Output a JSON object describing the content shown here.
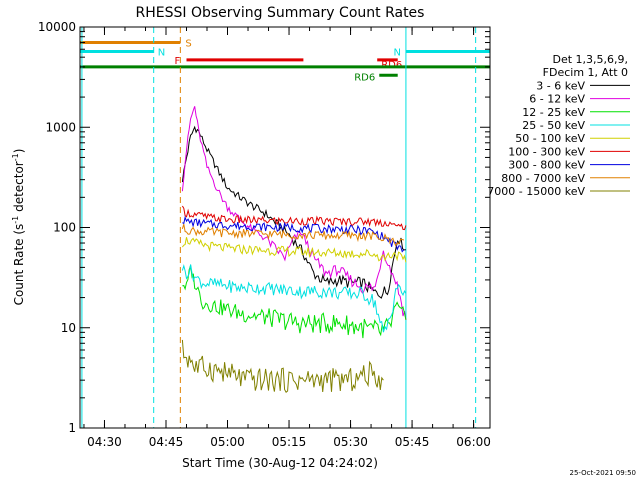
{
  "chart_data": {
    "type": "line",
    "title": "RHESSI Observing Summary Count Rates",
    "xlabel": "Start Time (30-Aug-12 04:24:02)",
    "ylabel": "Count Rate (s⁻¹ detector⁻¹)",
    "ylabel_main": "Count Rate (s",
    "ylabel_sup1": "-1",
    "ylabel_mid": " detector",
    "ylabel_sup2": "-1",
    "ylabel_end": ")",
    "y_scale": "log",
    "xlim": [
      "04:24:02",
      "06:04:00"
    ],
    "ylim": [
      1,
      10000
    ],
    "x_ticks": [
      "04:30",
      "04:45",
      "05:00",
      "05:15",
      "05:30",
      "05:45",
      "06:00"
    ],
    "y_ticks": [
      "1",
      "10",
      "100",
      "1000",
      "10000"
    ],
    "legend_title": [
      "Det 1,3,5,6,9,",
      "FDecim 1, Att 0"
    ],
    "legend_position": "right",
    "timestamp": "25-Oct-2021 09:50",
    "grid": false,
    "series": [
      {
        "name": "3 - 6 keV",
        "color": "#000000",
        "x": [
          "04:49:00",
          "04:50:00",
          "04:51:00",
          "04:52:00",
          "04:53:00",
          "04:55:00",
          "04:58:00",
          "05:00:00",
          "05:03:00",
          "05:06:00",
          "05:09:00",
          "05:12:00",
          "05:15:00",
          "05:18:00",
          "05:21:00",
          "05:24:00",
          "05:27:00",
          "05:30:00",
          "05:33:00",
          "05:36:00",
          "05:39:00",
          "05:41:30",
          "05:43:30"
        ],
        "y": [
          300,
          500,
          800,
          1000,
          900,
          600,
          350,
          250,
          200,
          165,
          140,
          110,
          85,
          60,
          35,
          28,
          30,
          28,
          28,
          22,
          23,
          80,
          60
        ]
      },
      {
        "name": "6 - 12 keV",
        "color": "#e000e0",
        "x": [
          "04:49:00",
          "04:50:00",
          "04:51:00",
          "04:52:00",
          "04:53:00",
          "04:55:00",
          "04:58:00",
          "05:00:00",
          "05:03:00",
          "05:06:00",
          "05:09:00",
          "05:12:00",
          "05:14:00",
          "05:16:00",
          "05:18:00",
          "05:21:00",
          "05:24:00",
          "05:27:00",
          "05:30:00",
          "05:33:00",
          "05:36:00",
          "05:38:00",
          "05:39:30",
          "05:41:00",
          "05:43:30"
        ],
        "y": [
          250,
          600,
          1200,
          1600,
          900,
          400,
          220,
          160,
          120,
          95,
          80,
          60,
          50,
          75,
          90,
          50,
          35,
          38,
          30,
          25,
          25,
          60,
          40,
          30,
          12
        ]
      },
      {
        "name": "12 - 25 keV",
        "color": "#00e000",
        "x": [
          "04:49:00",
          "04:50:00",
          "04:51:00",
          "04:52:00",
          "04:54:00",
          "04:58:00",
          "05:03:00",
          "05:08:00",
          "05:13:00",
          "05:18:00",
          "05:23:00",
          "05:28:00",
          "05:33:00",
          "05:37:00",
          "05:39:30",
          "05:41:00",
          "05:43:30"
        ],
        "y": [
          28,
          25,
          40,
          28,
          18,
          16,
          14,
          13,
          12,
          11,
          11,
          11,
          10,
          9,
          10,
          16,
          12
        ]
      },
      {
        "name": "25 - 50 keV",
        "color": "#00e0e0",
        "x": [
          "04:49:00",
          "04:50:00",
          "04:51:00",
          "04:52:00",
          "04:54:00",
          "04:58:00",
          "05:03:00",
          "05:08:00",
          "05:13:00",
          "05:18:00",
          "05:23:00",
          "05:28:00",
          "05:33:00",
          "05:36:00",
          "05:38:00",
          "05:40:00",
          "05:41:00",
          "05:43:30"
        ],
        "y": [
          40,
          35,
          38,
          32,
          28,
          27,
          25,
          25,
          24,
          23,
          23,
          22,
          22,
          18,
          8,
          14,
          25,
          22
        ]
      },
      {
        "name": "50 - 100 keV",
        "color": "#d0d000",
        "x": [
          "04:49:00",
          "04:50:00",
          "04:52:00",
          "04:56:00",
          "05:00:00",
          "05:05:00",
          "05:10:00",
          "05:15:00",
          "05:20:00",
          "05:25:00",
          "05:30:00",
          "05:35:00",
          "05:38:00",
          "05:40:00",
          "05:41:00",
          "05:43:30"
        ],
        "y": [
          70,
          75,
          70,
          65,
          62,
          60,
          59,
          58,
          57,
          56,
          55,
          55,
          50,
          54,
          55,
          45
        ]
      },
      {
        "name": "100 - 300 keV",
        "color": "#e00000",
        "x": [
          "04:49:00",
          "04:50:00",
          "04:52:00",
          "04:56:00",
          "05:00:00",
          "05:05:00",
          "05:10:00",
          "05:15:00",
          "05:20:00",
          "05:25:00",
          "05:30:00",
          "05:35:00",
          "05:38:00",
          "05:40:00",
          "05:41:00",
          "05:43:30"
        ],
        "y": [
          150,
          140,
          135,
          125,
          120,
          118,
          117,
          116,
          116,
          115,
          115,
          115,
          112,
          110,
          100,
          105
        ]
      },
      {
        "name": "300 - 800 keV",
        "color": "#0000e0",
        "x": [
          "04:49:00",
          "04:50:00",
          "04:52:00",
          "04:56:00",
          "05:00:00",
          "05:05:00",
          "05:10:00",
          "05:15:00",
          "05:20:00",
          "05:25:00",
          "05:30:00",
          "05:35:00",
          "05:38:00",
          "05:40:00",
          "05:41:00",
          "05:43:00"
        ],
        "y": [
          120,
          115,
          112,
          108,
          105,
          103,
          101,
          100,
          98,
          97,
          95,
          92,
          80,
          70,
          65,
          60
        ]
      },
      {
        "name": "800 - 7000 keV",
        "color": "#e08000",
        "x": [
          "04:49:00",
          "04:50:00",
          "04:52:00",
          "04:56:00",
          "05:00:00",
          "05:05:00",
          "05:10:00",
          "05:15:00",
          "05:20:00",
          "05:25:00",
          "05:30:00",
          "05:35:00",
          "05:38:00",
          "05:40:00",
          "05:41:00",
          "05:43:00"
        ],
        "y": [
          100,
          95,
          92,
          90,
          88,
          87,
          86,
          85,
          84,
          83,
          83,
          82,
          78,
          75,
          72,
          75
        ]
      },
      {
        "name": "7000 - 15000 keV",
        "color": "#808000",
        "x": [
          "04:49:00",
          "04:50:00",
          "04:51:00",
          "04:52:00",
          "04:55:00",
          "05:00:00",
          "05:05:00",
          "05:10:00",
          "05:15:00",
          "05:20:00",
          "05:25:00",
          "05:30:00",
          "05:35:00",
          "05:38:00"
        ],
        "y": [
          6,
          5,
          5,
          4,
          4,
          3.5,
          3,
          3,
          3,
          3,
          3,
          3,
          3.5,
          3
        ]
      }
    ],
    "flag_bars": [
      {
        "label": "S",
        "color": "#e08000",
        "y": 7000,
        "start": "04:24:02",
        "end": "04:48:30"
      },
      {
        "label": "N",
        "color": "#00e0e0",
        "y": 5700,
        "start": "04:24:02",
        "end": "04:42:00"
      },
      {
        "label": "N",
        "color": "#00e0e0",
        "y": 5700,
        "start": "05:43:30",
        "end": "06:04:00"
      },
      {
        "label": "F",
        "color": "#e00000",
        "y": 4700,
        "start": "04:50:00",
        "end": "05:18:30"
      },
      {
        "label": "RD6",
        "color": "#e00000",
        "y": 4700,
        "start": "05:36:30",
        "end": "05:41:30"
      },
      {
        "label": "RD6",
        "color": "#008000",
        "y": 3300,
        "start": "05:37:00",
        "end": "05:41:30"
      },
      {
        "label": "",
        "color": "#008000",
        "y": 4000,
        "start": "04:24:02",
        "end": "06:04:00"
      }
    ],
    "vertical_markers": [
      {
        "time": "04:24:30",
        "color": "#00e0e0",
        "style": "solid"
      },
      {
        "time": "04:42:00",
        "color": "#00e0e0",
        "style": "dashed"
      },
      {
        "time": "04:48:30",
        "color": "#e08000",
        "style": "dashed"
      },
      {
        "time": "05:43:30",
        "color": "#00e0e0",
        "style": "solid"
      },
      {
        "time": "06:00:30",
        "color": "#00e0e0",
        "style": "dashed"
      }
    ]
  }
}
